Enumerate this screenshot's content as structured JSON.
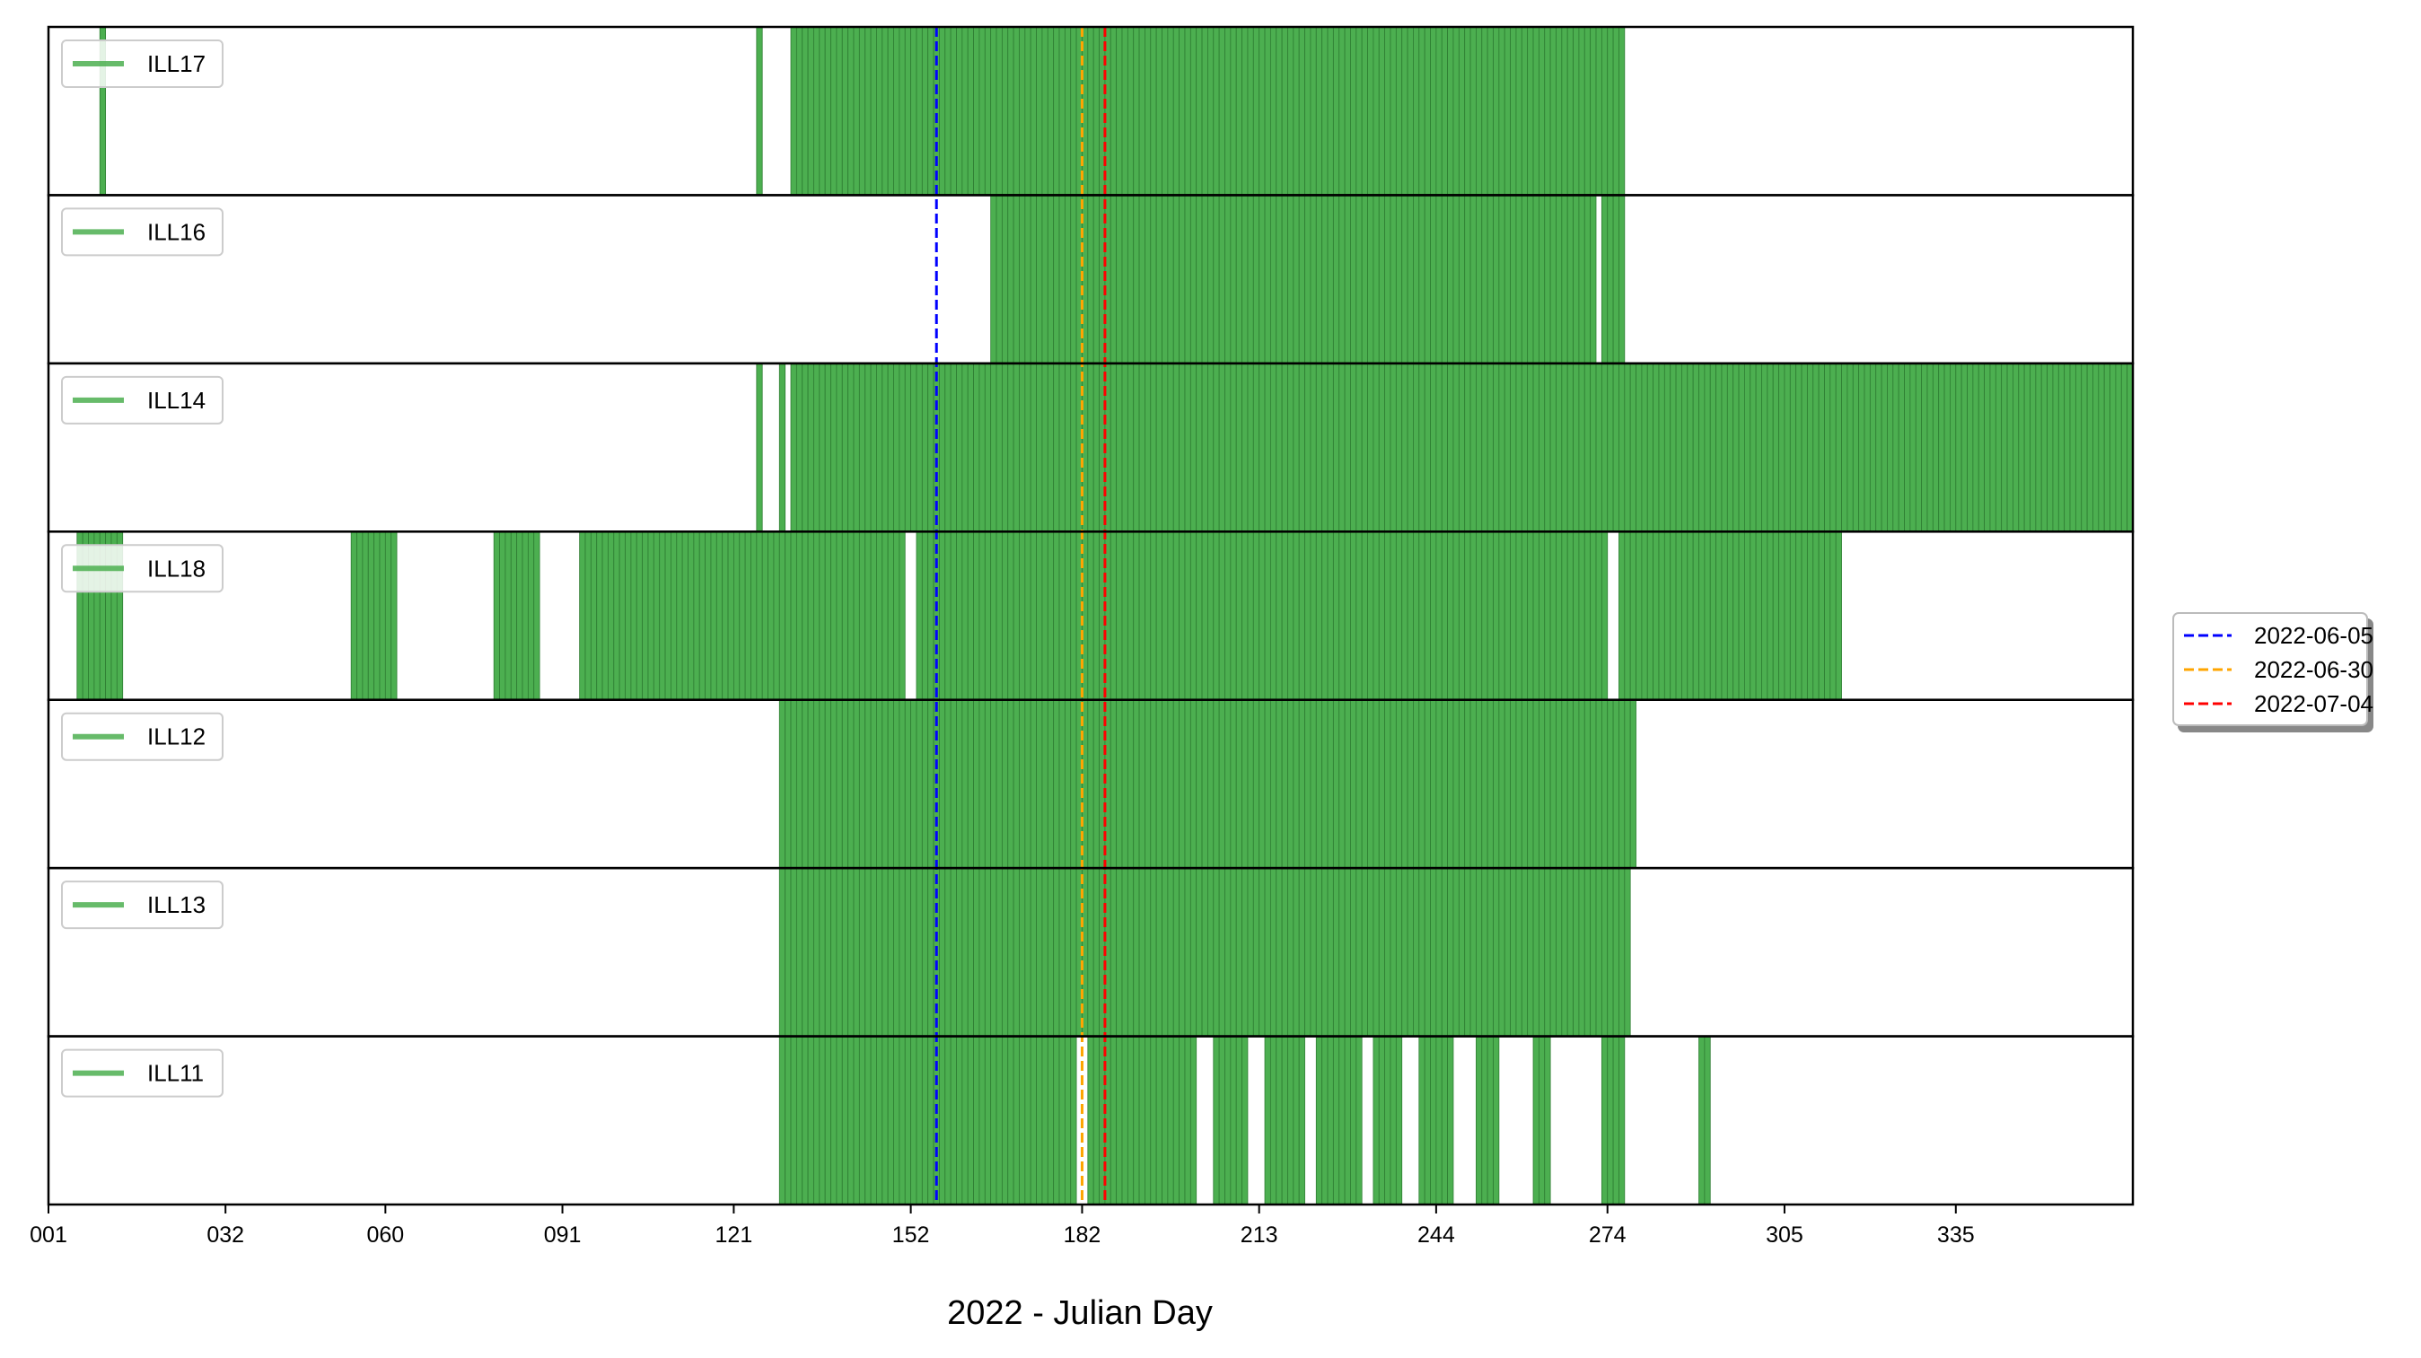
{
  "chart_data": {
    "type": "bar",
    "xlabel": "2022 - Julian Day",
    "xlim": [
      1,
      366
    ],
    "xticks": [
      {
        "day": 1,
        "label": "001"
      },
      {
        "day": 32,
        "label": "032"
      },
      {
        "day": 60,
        "label": "060"
      },
      {
        "day": 91,
        "label": "091"
      },
      {
        "day": 121,
        "label": "121"
      },
      {
        "day": 152,
        "label": "152"
      },
      {
        "day": 182,
        "label": "182"
      },
      {
        "day": 213,
        "label": "213"
      },
      {
        "day": 244,
        "label": "244"
      },
      {
        "day": 274,
        "label": "274"
      },
      {
        "day": 305,
        "label": "305"
      },
      {
        "day": 335,
        "label": "335"
      }
    ],
    "bar_color": "#4caf50",
    "bar_edge_color": "#2e7d32",
    "series": [
      {
        "name": "ILL17",
        "days": [
          [
            10,
            11
          ],
          [
            125,
            126
          ],
          [
            131,
            277
          ]
        ]
      },
      {
        "name": "ILL16",
        "days": [
          [
            166,
            272
          ],
          [
            273,
            277
          ]
        ]
      },
      {
        "name": "ILL14",
        "days": [
          [
            125,
            126
          ],
          [
            129,
            130
          ],
          [
            131,
            366
          ]
        ]
      },
      {
        "name": "ILL18",
        "days": [
          [
            6,
            14
          ],
          [
            54,
            62
          ],
          [
            79,
            87
          ],
          [
            94,
            151
          ],
          [
            153,
            274
          ],
          [
            276,
            315
          ]
        ]
      },
      {
        "name": "ILL12",
        "days": [
          [
            129,
            279
          ]
        ]
      },
      {
        "name": "ILL13",
        "days": [
          [
            129,
            278
          ]
        ]
      },
      {
        "name": "ILL11",
        "days": [
          [
            129,
            181
          ],
          [
            183,
            202
          ],
          [
            205,
            211
          ],
          [
            214,
            221
          ],
          [
            223,
            231
          ],
          [
            233,
            238
          ],
          [
            241,
            247
          ],
          [
            251,
            255
          ],
          [
            261,
            264
          ],
          [
            273,
            277
          ],
          [
            290,
            292
          ]
        ]
      }
    ],
    "events": [
      {
        "date": "2022-06-05",
        "day": 156.5,
        "color": "#0000ff"
      },
      {
        "date": "2022-06-30",
        "day": 182,
        "color": "#ffa500"
      },
      {
        "date": "2022-07-04",
        "day": 186,
        "color": "#ff0000"
      }
    ],
    "events_legend_position": "center-right"
  }
}
